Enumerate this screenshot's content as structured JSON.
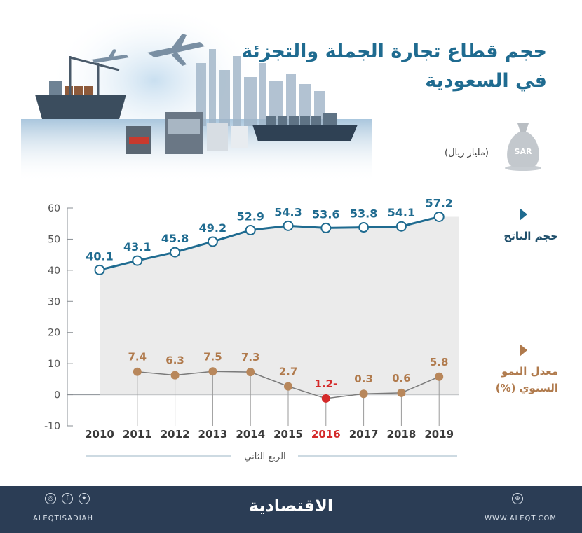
{
  "header": {
    "title_line1": "حجم قطاع تجارة الجملة والتجزئة",
    "title_line2": "في السعودية",
    "unit": "(مليار ريال)",
    "bag_label": "SAR"
  },
  "legend": {
    "series1_label": "حجم الناتج",
    "series2_label_line1": "معدل النمو",
    "series2_label_line2": "السنوي (%)"
  },
  "chart_data": {
    "type": "line",
    "x": [
      "2010",
      "2011",
      "2012",
      "2013",
      "2014",
      "2015",
      "2016",
      "2017",
      "2018",
      "2019"
    ],
    "ylim": [
      -10,
      60
    ],
    "yticks": [
      "-10",
      "0",
      "10",
      "20",
      "30",
      "40",
      "50",
      "60"
    ],
    "xlabel": "الربع الثاني",
    "series": [
      {
        "name": "حجم الناتج",
        "color": "#1f6b90",
        "label_color": "#1f6b90",
        "values": [
          40.1,
          43.1,
          45.8,
          49.2,
          52.9,
          54.3,
          53.6,
          53.8,
          54.1,
          57.2
        ],
        "labels": [
          "40.1",
          "43.1",
          "45.8",
          "49.2",
          "52.9",
          "54.3",
          "53.6",
          "53.8",
          "54.1",
          "57.2"
        ]
      },
      {
        "name": "معدل النمو السنوي (%)",
        "color": "#b8875b",
        "label_color": "#b07a4c",
        "highlight_color": "#d42a2a",
        "values": [
          null,
          7.4,
          6.3,
          7.5,
          7.3,
          2.7,
          -1.2,
          0.3,
          0.6,
          5.8
        ],
        "labels": [
          "",
          "7.4",
          "6.3",
          "7.5",
          "7.3",
          "2.7",
          "1.2-",
          "0.3",
          "0.6",
          "5.8"
        ]
      }
    ],
    "highlight_year": "2016"
  },
  "footer": {
    "brand": "الاقتصادية",
    "left_handle": "ALEQTISADIAH",
    "right_url": "WWW.ALEQT.COM"
  }
}
